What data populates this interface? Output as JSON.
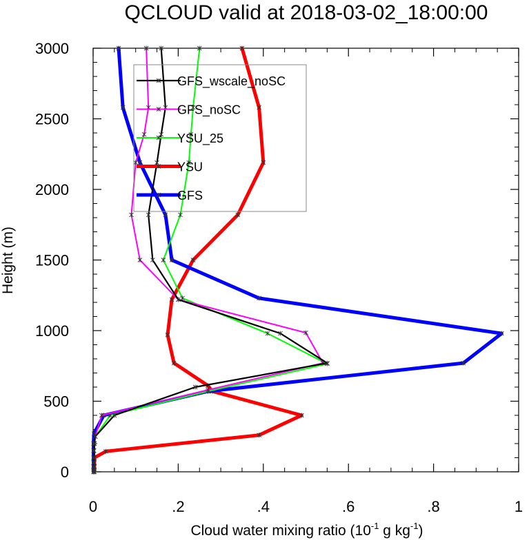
{
  "chart_data": {
    "type": "line",
    "title": "QCLOUD valid at 2018-03-02_18:00:00",
    "xlabel": "Cloud water mixing ratio (10",
    "xlabel_sup1": "-1",
    "xlabel_mid": " g kg",
    "xlabel_sup2": "-1",
    "xlabel_end": ")",
    "ylabel": "Height (m)",
    "xlim": [
      0,
      1
    ],
    "ylim": [
      0,
      3000
    ],
    "x_ticks": [
      0,
      0.2,
      0.4,
      0.6,
      0.8,
      1
    ],
    "x_tick_labels": [
      "0",
      ".2",
      ".4",
      ".6",
      ".8",
      "1"
    ],
    "y_ticks": [
      0,
      500,
      1000,
      1500,
      2000,
      2500,
      3000
    ],
    "y_tick_labels": [
      "0",
      "500",
      "1000",
      "1500",
      "2000",
      "2500",
      "3000"
    ],
    "legend_position": "top-left",
    "series": [
      {
        "name": "GFS_wscale_noSC",
        "color": "#000000",
        "points": [
          [
            0.002,
            0
          ],
          [
            0.002,
            15
          ],
          [
            0.002,
            35
          ],
          [
            0.002,
            65
          ],
          [
            0.002,
            100
          ],
          [
            0.002,
            150
          ],
          [
            0.003,
            200
          ],
          [
            0.005,
            250
          ],
          [
            0.05,
            400
          ],
          [
            0.24,
            600
          ],
          [
            0.55,
            770
          ],
          [
            0.44,
            980
          ],
          [
            0.2,
            1220
          ],
          [
            0.14,
            1500
          ],
          [
            0.13,
            1820
          ],
          [
            0.15,
            2190
          ],
          [
            0.16,
            2390
          ],
          [
            0.17,
            2580
          ],
          [
            0.16,
            3000
          ]
        ]
      },
      {
        "name": "GFS_noSC",
        "color": "#ff00ff",
        "points": [
          [
            0.002,
            0
          ],
          [
            0.002,
            15
          ],
          [
            0.002,
            35
          ],
          [
            0.002,
            65
          ],
          [
            0.002,
            100
          ],
          [
            0.002,
            150
          ],
          [
            0.003,
            200
          ],
          [
            0.005,
            250
          ],
          [
            0.02,
            400
          ],
          [
            0.27,
            580
          ],
          [
            0.54,
            770
          ],
          [
            0.5,
            985
          ],
          [
            0.2,
            1220
          ],
          [
            0.11,
            1500
          ],
          [
            0.09,
            1820
          ],
          [
            0.1,
            2190
          ],
          [
            0.12,
            2390
          ],
          [
            0.13,
            2580
          ],
          [
            0.125,
            3000
          ]
        ]
      },
      {
        "name": "YSU_25",
        "color": "#00ff00",
        "points": [
          [
            0.002,
            0
          ],
          [
            0.002,
            15
          ],
          [
            0.002,
            35
          ],
          [
            0.002,
            65
          ],
          [
            0.002,
            100
          ],
          [
            0.002,
            150
          ],
          [
            0.003,
            200
          ],
          [
            0.005,
            250
          ],
          [
            0.04,
            400
          ],
          [
            0.27,
            570
          ],
          [
            0.55,
            765
          ],
          [
            0.41,
            980
          ],
          [
            0.21,
            1230
          ],
          [
            0.165,
            1500
          ],
          [
            0.205,
            1820
          ],
          [
            0.225,
            2190
          ],
          [
            0.23,
            2390
          ],
          [
            0.235,
            2580
          ],
          [
            0.25,
            3000
          ]
        ]
      },
      {
        "name": "YSU",
        "color": "#ff0000",
        "points": [
          [
            0.003,
            0
          ],
          [
            0.003,
            15
          ],
          [
            0.003,
            35
          ],
          [
            0.003,
            65
          ],
          [
            0.003,
            100
          ],
          [
            0.03,
            145
          ],
          [
            0.39,
            260
          ],
          [
            0.49,
            400
          ],
          [
            0.28,
            570
          ],
          [
            0.27,
            610
          ],
          [
            0.19,
            770
          ],
          [
            0.175,
            970
          ],
          [
            0.185,
            1220
          ],
          [
            0.235,
            1500
          ],
          [
            0.34,
            1820
          ],
          [
            0.4,
            2190
          ],
          [
            0.39,
            2580
          ],
          [
            0.35,
            3000
          ]
        ]
      },
      {
        "name": "GFS",
        "color": "#0000ff",
        "points": [
          [
            0.001,
            0
          ],
          [
            0.001,
            15
          ],
          [
            0.001,
            35
          ],
          [
            0.001,
            65
          ],
          [
            0.001,
            100
          ],
          [
            0.001,
            150
          ],
          [
            0.001,
            200
          ],
          [
            0.002,
            270
          ],
          [
            0.025,
            400
          ],
          [
            0.27,
            570
          ],
          [
            0.87,
            770
          ],
          [
            0.96,
            980
          ],
          [
            0.39,
            1230
          ],
          [
            0.185,
            1500
          ],
          [
            0.17,
            1820
          ],
          [
            0.11,
            2190
          ],
          [
            0.07,
            2580
          ],
          [
            0.06,
            3000
          ]
        ]
      }
    ]
  }
}
